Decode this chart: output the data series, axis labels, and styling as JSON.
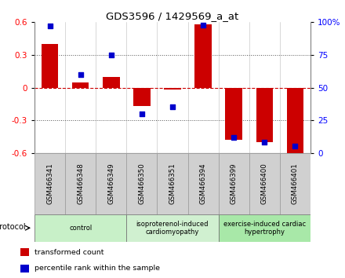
{
  "title": "GDS3596 / 1429569_a_at",
  "samples": [
    "GSM466341",
    "GSM466348",
    "GSM466349",
    "GSM466350",
    "GSM466351",
    "GSM466394",
    "GSM466399",
    "GSM466400",
    "GSM466401"
  ],
  "transformed_count": [
    0.4,
    0.05,
    0.1,
    -0.17,
    -0.02,
    0.58,
    -0.48,
    -0.5,
    -0.6
  ],
  "percentile_rank": [
    97,
    60,
    75,
    30,
    35,
    98,
    12,
    8,
    5
  ],
  "groups": [
    {
      "label": "control",
      "start": 0,
      "end": 3,
      "color": "#c8f0c8"
    },
    {
      "label": "isoproterenol-induced\ncardiomyopathy",
      "start": 3,
      "end": 6,
      "color": "#d0f0d0"
    },
    {
      "label": "exercise-induced cardiac\nhypertrophy",
      "start": 6,
      "end": 9,
      "color": "#a8e8a8"
    }
  ],
  "bar_color": "#cc0000",
  "dot_color": "#0000cc",
  "ylim_left": [
    -0.6,
    0.6
  ],
  "ylim_right": [
    0,
    100
  ],
  "yticks_left": [
    -0.6,
    -0.3,
    0,
    0.3,
    0.6
  ],
  "yticks_right": [
    0,
    25,
    50,
    75,
    100
  ],
  "right_tick_labels": [
    "0",
    "25",
    "50",
    "75",
    "100%"
  ],
  "protocol_label": "protocol",
  "legend_items": [
    {
      "label": "transformed count",
      "color": "#cc0000"
    },
    {
      "label": "percentile rank within the sample",
      "color": "#0000cc"
    }
  ],
  "zero_line_color": "#cc0000",
  "grid_line_color": "#555555",
  "bar_width": 0.55,
  "sample_box_color": "#d0d0d0",
  "sample_box_edge_color": "#999999"
}
